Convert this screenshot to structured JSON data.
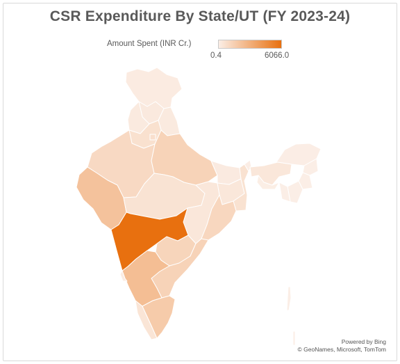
{
  "title": "CSR Expenditure By State/UT (FY 2023-24)",
  "legend": {
    "label": "Amount Spent (INR Cr.)",
    "min": "0.4",
    "max": "6066.0",
    "min_value": 0.4,
    "max_value": 6066.0,
    "color_low": "#fbeee6",
    "color_high": "#e8700f"
  },
  "attribution": {
    "line1": "Powered by Bing",
    "line2": "© GeoNames, Microsoft, TomTom"
  },
  "regions": [
    {
      "name": "Jammu & Kashmir / Ladakh",
      "value": 150
    },
    {
      "name": "Himachal Pradesh",
      "value": 220
    },
    {
      "name": "Punjab",
      "value": 200
    },
    {
      "name": "Uttarakhand",
      "value": 210
    },
    {
      "name": "Haryana",
      "value": 650
    },
    {
      "name": "Delhi",
      "value": 700
    },
    {
      "name": "Rajasthan",
      "value": 1000
    },
    {
      "name": "Uttar Pradesh",
      "value": 1300
    },
    {
      "name": "Bihar",
      "value": 180
    },
    {
      "name": "Gujarat",
      "value": 2100
    },
    {
      "name": "Madhya Pradesh",
      "value": 550
    },
    {
      "name": "Chhattisgarh",
      "value": 330
    },
    {
      "name": "Jharkhand",
      "value": 350
    },
    {
      "name": "West Bengal",
      "value": 600
    },
    {
      "name": "Odisha",
      "value": 1100
    },
    {
      "name": "Maharashtra",
      "value": 6066
    },
    {
      "name": "Telangana",
      "value": 1200
    },
    {
      "name": "Andhra Pradesh",
      "value": 1300
    },
    {
      "name": "Karnataka",
      "value": 2300
    },
    {
      "name": "Goa",
      "value": 80
    },
    {
      "name": "Kerala",
      "value": 450
    },
    {
      "name": "Tamil Nadu",
      "value": 1700
    },
    {
      "name": "Sikkim",
      "value": 40
    },
    {
      "name": "Assam",
      "value": 350
    },
    {
      "name": "Arunachal Pradesh",
      "value": 30
    },
    {
      "name": "Nagaland",
      "value": 10
    },
    {
      "name": "Manipur",
      "value": 8
    },
    {
      "name": "Mizoram",
      "value": 5
    },
    {
      "name": "Tripura",
      "value": 10
    },
    {
      "name": "Meghalaya",
      "value": 15
    },
    {
      "name": "Andaman & Nicobar",
      "value": 1
    }
  ]
}
